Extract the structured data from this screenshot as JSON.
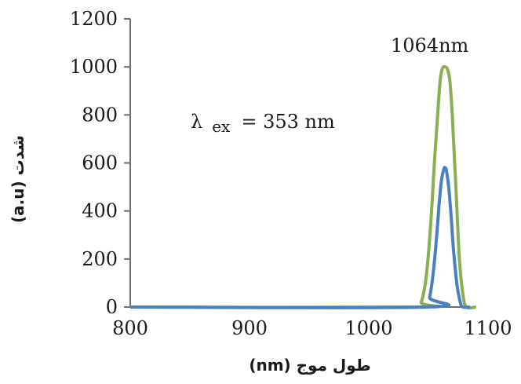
{
  "chart_data": {
    "type": "line",
    "title": "",
    "xlabel": "طول موج (nm)",
    "ylabel": "شدت (a.u)",
    "xlim": [
      800,
      1100
    ],
    "ylim": [
      0,
      1200
    ],
    "x_ticks": [
      "800",
      "900",
      "1000",
      "1100"
    ],
    "y_ticks": [
      "0",
      "200",
      "400",
      "600",
      "800",
      "1000",
      "1200"
    ],
    "annotations": {
      "peak_label": "1064nm",
      "excitation_symbol": "λ",
      "excitation_sub": "ex",
      "excitation_value": "= 353 nm"
    },
    "series": [
      {
        "color": "#8aaf52",
        "x": [
          800,
          1040,
          1044,
          1048,
          1052,
          1055,
          1058,
          1060,
          1062,
          1064,
          1066,
          1068,
          1070,
          1073,
          1076,
          1079,
          1082,
          1090
        ],
        "y": [
          0,
          0,
          20,
          120,
          350,
          600,
          820,
          950,
          995,
          1000,
          990,
          940,
          800,
          500,
          200,
          50,
          0,
          0
        ]
      },
      {
        "color": "#4a7fc1",
        "x": [
          800,
          1048,
          1051,
          1054,
          1057,
          1059,
          1061,
          1063,
          1064,
          1065,
          1067,
          1069,
          1071,
          1074,
          1077,
          1079,
          1085
        ],
        "y": [
          0,
          0,
          40,
          140,
          300,
          430,
          530,
          575,
          580,
          570,
          500,
          380,
          240,
          90,
          15,
          0,
          0
        ]
      }
    ]
  }
}
